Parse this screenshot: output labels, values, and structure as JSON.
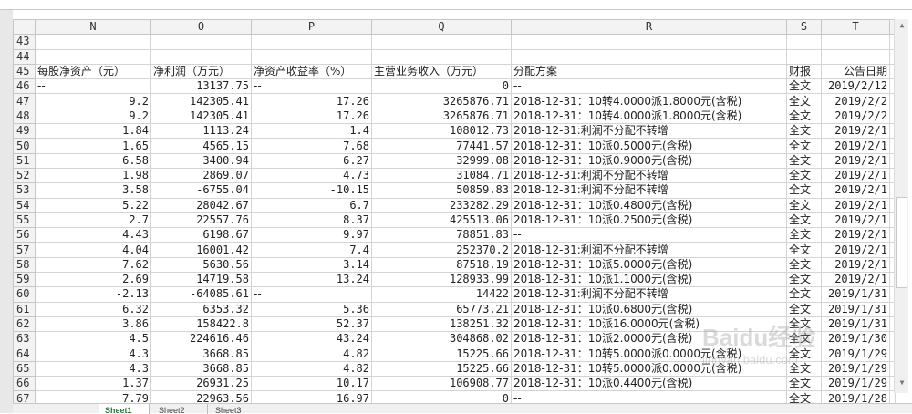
{
  "columns": [
    "N",
    "O",
    "P",
    "Q",
    "R",
    "S",
    "T"
  ],
  "rows": [
    {
      "n": "43",
      "c": [
        "",
        "",
        "",
        "",
        "",
        "",
        ""
      ]
    },
    {
      "n": "44",
      "c": [
        "",
        "",
        "",
        "",
        "",
        "",
        ""
      ]
    },
    {
      "n": "45",
      "c": [
        "每股净资产（元）",
        "净利润（万元）",
        "净资产收益率（%）",
        "主营业务收入（万元）",
        "分配方案",
        "财报",
        "公告日期"
      ]
    },
    {
      "n": "46",
      "c": [
        "--",
        "13137.75",
        "--",
        "0",
        "--",
        "全文",
        "2019/2/12"
      ]
    },
    {
      "n": "47",
      "c": [
        "9.2",
        "142305.41",
        "17.26",
        "3265876.71",
        "2018-12-31：10转4.0000派1.8000元(含税)",
        "全文",
        "2019/2/2"
      ]
    },
    {
      "n": "48",
      "c": [
        "9.2",
        "142305.41",
        "17.26",
        "3265876.71",
        "2018-12-31：10转4.0000派1.8000元(含税)",
        "全文",
        "2019/2/2"
      ]
    },
    {
      "n": "49",
      "c": [
        "1.84",
        "1113.24",
        "1.4",
        "108012.73",
        "2018-12-31:利润不分配不转增",
        "全文",
        "2019/2/1"
      ]
    },
    {
      "n": "50",
      "c": [
        "1.65",
        "4565.15",
        "7.68",
        "77441.57",
        "2018-12-31：10派0.5000元(含税)",
        "全文",
        "2019/2/1"
      ]
    },
    {
      "n": "51",
      "c": [
        "6.58",
        "3400.94",
        "6.27",
        "32999.08",
        "2018-12-31：10派0.9000元(含税)",
        "全文",
        "2019/2/1"
      ]
    },
    {
      "n": "52",
      "c": [
        "1.98",
        "2869.07",
        "4.73",
        "31084.71",
        "2018-12-31:利润不分配不转增",
        "全文",
        "2019/2/1"
      ]
    },
    {
      "n": "53",
      "c": [
        "3.58",
        "-6755.04",
        "-10.15",
        "50859.83",
        "2018-12-31:利润不分配不转增",
        "全文",
        "2019/2/1"
      ]
    },
    {
      "n": "54",
      "c": [
        "5.22",
        "28042.67",
        "6.7",
        "233282.29",
        "2018-12-31：10派0.4800元(含税)",
        "全文",
        "2019/2/1"
      ]
    },
    {
      "n": "55",
      "c": [
        "2.7",
        "22557.76",
        "8.37",
        "425513.06",
        "2018-12-31：10派0.2500元(含税)",
        "全文",
        "2019/2/1"
      ]
    },
    {
      "n": "56",
      "c": [
        "4.43",
        "6198.67",
        "9.97",
        "78851.83",
        "--",
        "全文",
        "2019/2/1"
      ]
    },
    {
      "n": "57",
      "c": [
        "4.04",
        "16001.42",
        "7.4",
        "252370.2",
        "2018-12-31:利润不分配不转增",
        "全文",
        "2019/2/1"
      ]
    },
    {
      "n": "58",
      "c": [
        "7.62",
        "5630.56",
        "3.14",
        "87518.19",
        "2018-12-31：10派5.0000元(含税)",
        "全文",
        "2019/2/1"
      ]
    },
    {
      "n": "59",
      "c": [
        "2.69",
        "14719.58",
        "13.24",
        "128933.99",
        "2018-12-31：10派1.1000元(含税)",
        "全文",
        "2019/2/1"
      ]
    },
    {
      "n": "60",
      "c": [
        "-2.13",
        "-64085.61",
        "--",
        "14422",
        "2018-12-31:利润不分配不转增",
        "全文",
        "2019/1/31"
      ]
    },
    {
      "n": "61",
      "c": [
        "6.32",
        "6353.32",
        "5.36",
        "65773.21",
        "2018-12-31：10派0.6800元(含税)",
        "全文",
        "2019/1/31"
      ]
    },
    {
      "n": "62",
      "c": [
        "3.86",
        "158422.8",
        "52.37",
        "138251.32",
        "2018-12-31：10派16.0000元(含税)",
        "全文",
        "2019/1/31"
      ]
    },
    {
      "n": "63",
      "c": [
        "4.5",
        "224616.46",
        "43.24",
        "304868.02",
        "2018-12-31：10派2.0000元(含税)",
        "全文",
        "2019/1/30"
      ]
    },
    {
      "n": "64",
      "c": [
        "4.3",
        "3668.85",
        "4.82",
        "15225.66",
        "2018-12-31：10转5.0000派0.0000元(含税)",
        "全文",
        "2019/1/29"
      ]
    },
    {
      "n": "65",
      "c": [
        "4.3",
        "3668.85",
        "4.82",
        "15225.66",
        "2018-12-31：10转5.0000派0.0000元(含税)",
        "全文",
        "2019/1/29"
      ]
    },
    {
      "n": "66",
      "c": [
        "1.37",
        "26931.25",
        "10.17",
        "106908.77",
        "2018-12-31：10派0.4400元(含税)",
        "全文",
        "2019/1/29"
      ]
    },
    {
      "n": "67",
      "c": [
        "7.79",
        "22963.56",
        "16.97",
        "0",
        "--",
        "全文",
        "2019/1/28"
      ]
    }
  ],
  "sheet_tabs": [
    "Sheet1",
    "Sheet2",
    "Sheet3"
  ],
  "watermark": {
    "line1": "Baidu经验",
    "line2": "jingyan.baidu.com"
  },
  "colors": {
    "grid_line": "#d4d4d4",
    "header_bg": "#f3f3f3",
    "active_tab": "#2a7a3a"
  }
}
